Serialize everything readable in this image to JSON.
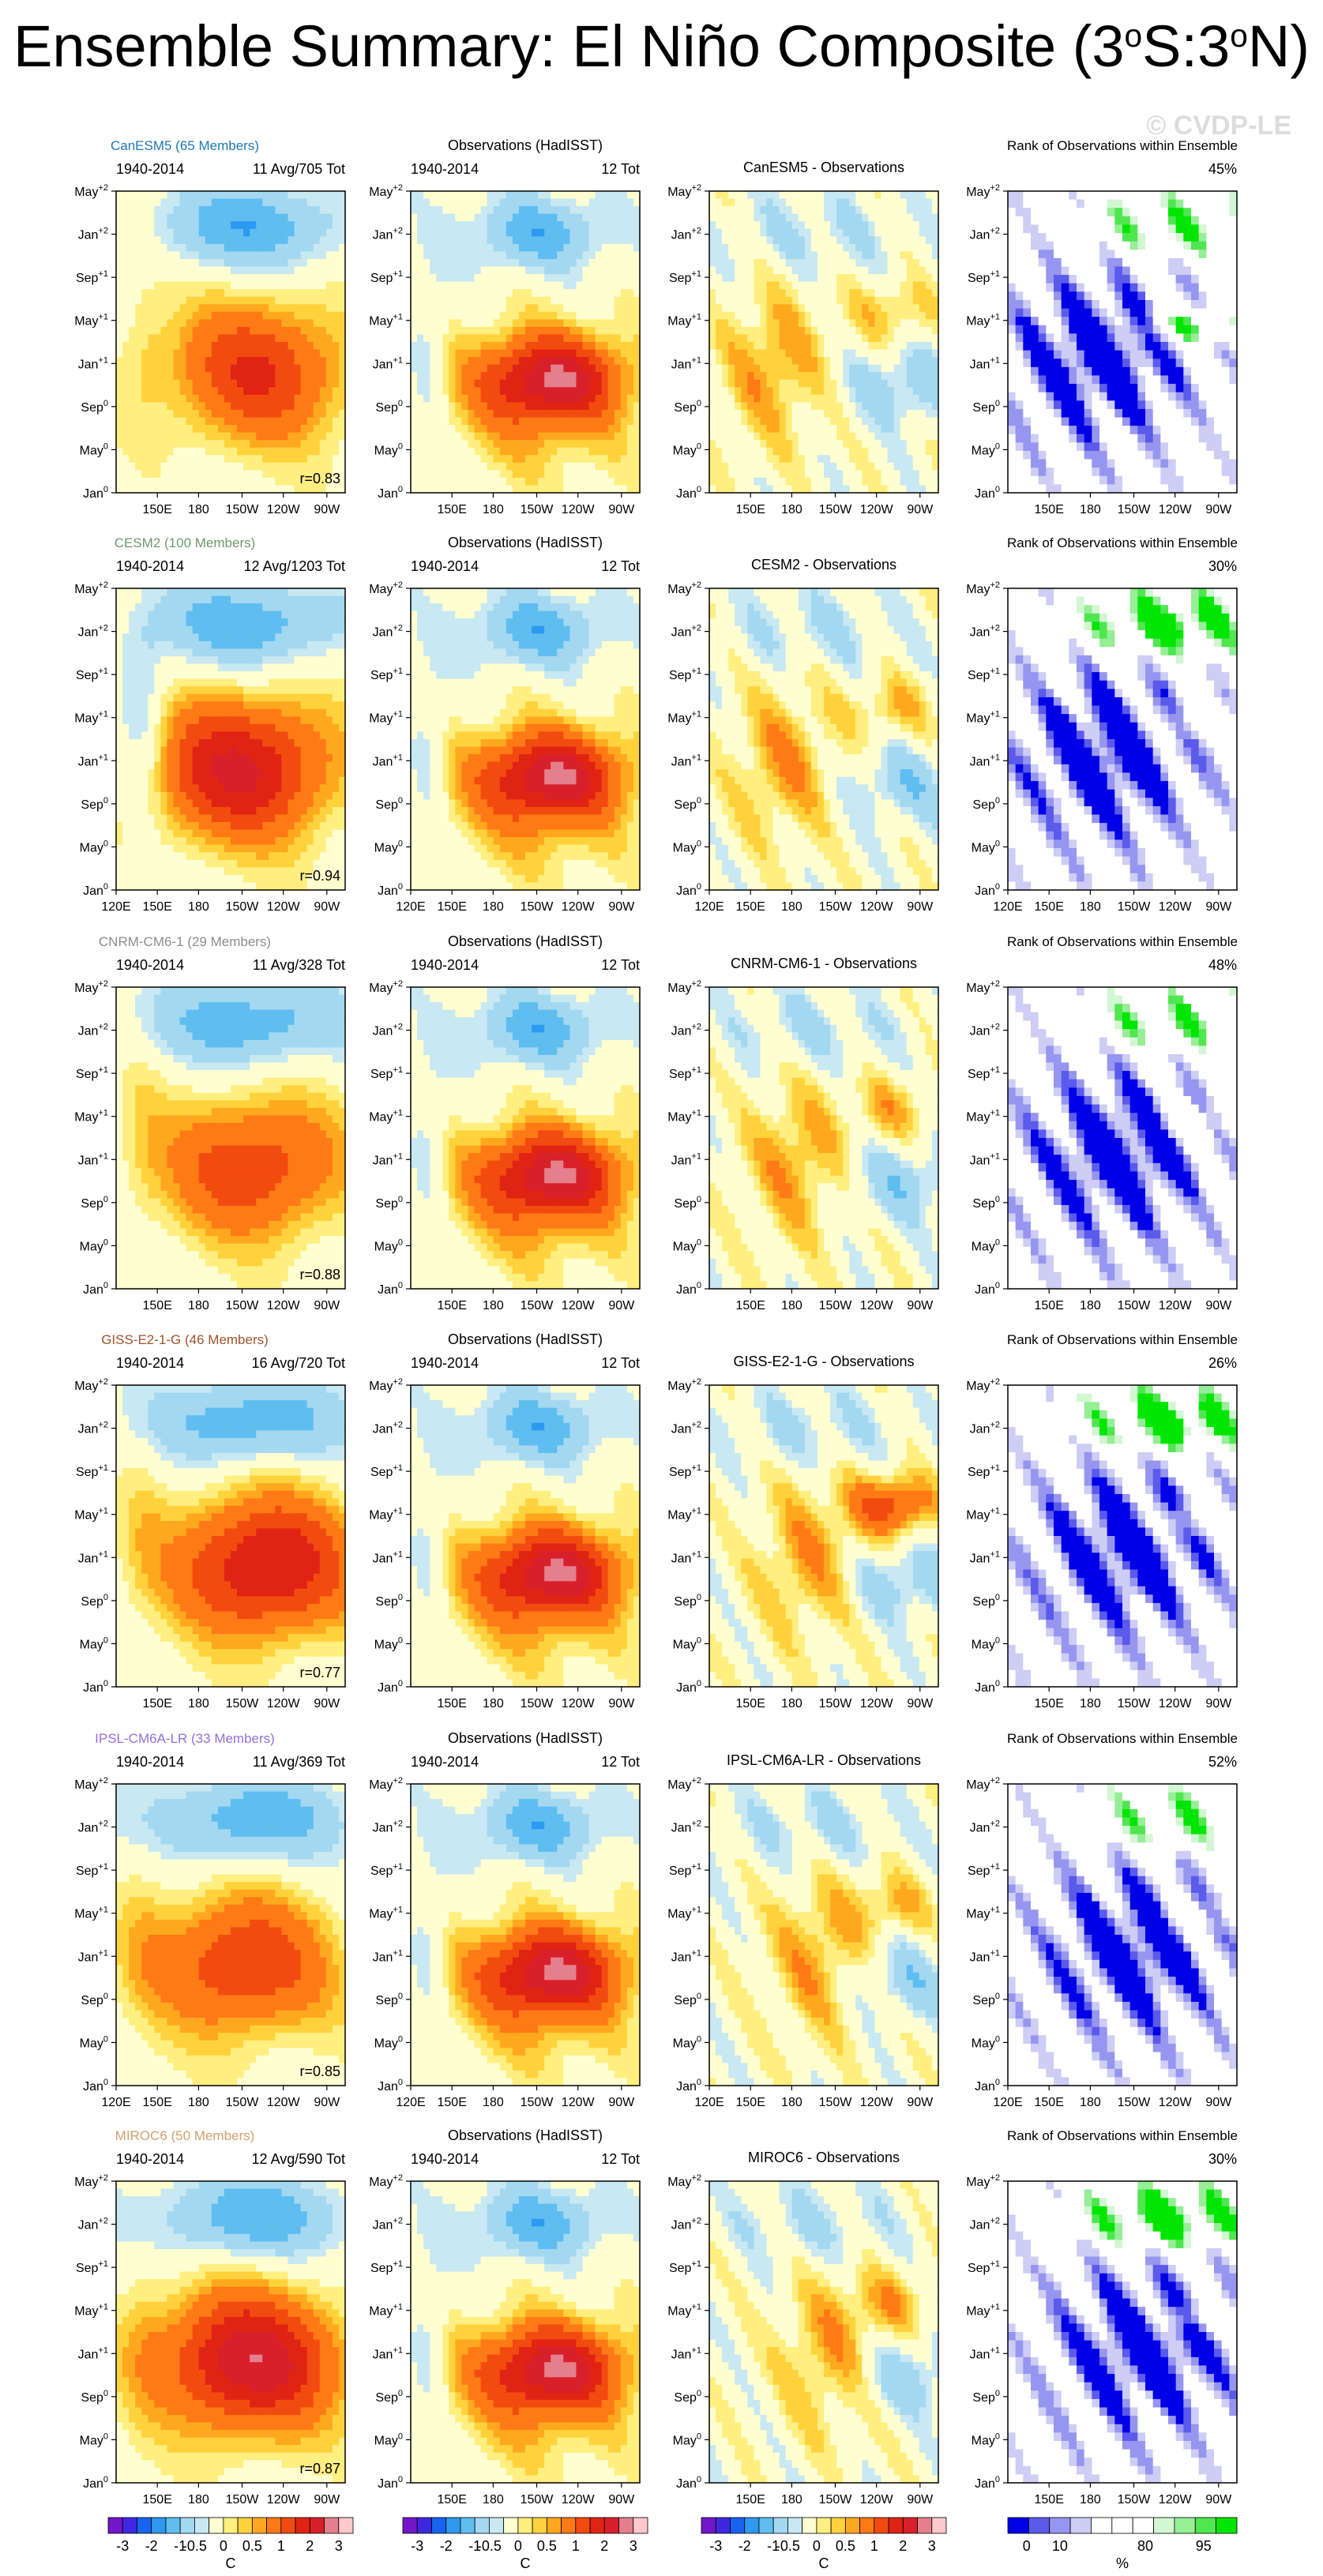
{
  "title": {
    "main": "Ensemble Summary: El Niño Composite (3",
    "deg1": "o",
    "mid": "S:3",
    "deg2": "o",
    "end": "N)"
  },
  "watermark": "© CVDP-LE",
  "colors": {
    "sst_scale": [
      "#7216c9",
      "#3d28e0",
      "#1863f0",
      "#2d99f0",
      "#5fbdf0",
      "#a3d8f0",
      "#c8e8f2",
      "#fffed0",
      "#ffee80",
      "#ffd23c",
      "#ffa81f",
      "#ff7a14",
      "#f24b10",
      "#e02414",
      "#d8202a",
      "#e4808c",
      "#ffc8cc"
    ],
    "rank_scale": [
      "#0000e6",
      "#5a5aeb",
      "#9696f0",
      "#cdcdf5",
      "#ffffff",
      "#ffffff",
      "#ffffff",
      "#d2f7d2",
      "#96ee96",
      "#50e650",
      "#00e600"
    ]
  },
  "chart_data": {
    "type": "heatmap",
    "description_units": "C",
    "y_tick_labels": [
      {
        "base": "May",
        "sup": "+2"
      },
      {
        "base": "Jan",
        "sup": "+2"
      },
      {
        "base": "Sep",
        "sup": "+1"
      },
      {
        "base": "May",
        "sup": "+1"
      },
      {
        "base": "Jan",
        "sup": "+1"
      },
      {
        "base": "Sep",
        "sup": "0"
      },
      {
        "base": "May",
        "sup": "0"
      },
      {
        "base": "Jan",
        "sup": "0"
      }
    ],
    "x_tick_labels_full": [
      "120E",
      "150E",
      "180",
      "150W",
      "120W",
      "90W"
    ],
    "x_tick_labels_short": [
      "150E",
      "180",
      "150W",
      "120W",
      "90W"
    ],
    "rows": [
      {
        "model": "CanESM5 (65 Members)",
        "model_color": "#2178b4",
        "period": "1940-2014",
        "model_count": "11 Avg/705 Tot",
        "diff_title": "CanESM5 - Observations",
        "rank_pct": "45%",
        "r": "r=0.83",
        "full_x": false
      },
      {
        "model": "CESM2 (100 Members)",
        "model_color": "#6b9a6b",
        "period": "1940-2014",
        "model_count": "12 Avg/1203 Tot",
        "diff_title": "CESM2 - Observations",
        "rank_pct": "30%",
        "r": "r=0.94",
        "full_x": true
      },
      {
        "model": "CNRM-CM6-1 (29 Members)",
        "model_color": "#8c8c8c",
        "period": "1940-2014",
        "model_count": "11 Avg/328 Tot",
        "diff_title": "CNRM-CM6-1 - Observations",
        "rank_pct": "48%",
        "r": "r=0.88",
        "full_x": false
      },
      {
        "model": "GISS-E2-1-G (46 Members)",
        "model_color": "#a0522d",
        "period": "1940-2014",
        "model_count": "16 Avg/720 Tot",
        "diff_title": "GISS-E2-1-G - Observations",
        "rank_pct": "26%",
        "r": "r=0.77",
        "full_x": false
      },
      {
        "model": "IPSL-CM6A-LR (33 Members)",
        "model_color": "#9370db",
        "period": "1940-2014",
        "model_count": "11 Avg/369 Tot",
        "diff_title": "IPSL-CM6A-LR - Observations",
        "rank_pct": "52%",
        "r": "r=0.85",
        "full_x": true
      },
      {
        "model": "MIROC6 (50 Members)",
        "model_color": "#d2a06e",
        "period": "1940-2014",
        "model_count": "12 Avg/590 Tot",
        "diff_title": "MIROC6 - Observations",
        "rank_pct": "30%",
        "r": "r=0.87",
        "full_x": false
      }
    ],
    "obs_title": "Observations (HadISST)",
    "obs_period": "1940-2014",
    "obs_count": "12 Tot",
    "rank_title": "Rank of Observations within Ensemble",
    "sst_colorbar": {
      "ticks": [
        "-3",
        "-2",
        "-1",
        "-0.5",
        "0",
        "0.5",
        "1",
        "2",
        "3"
      ],
      "unit": "C"
    },
    "rank_colorbar": {
      "ticks": [
        "0",
        "10",
        "80",
        "95"
      ],
      "unit": "%"
    }
  }
}
